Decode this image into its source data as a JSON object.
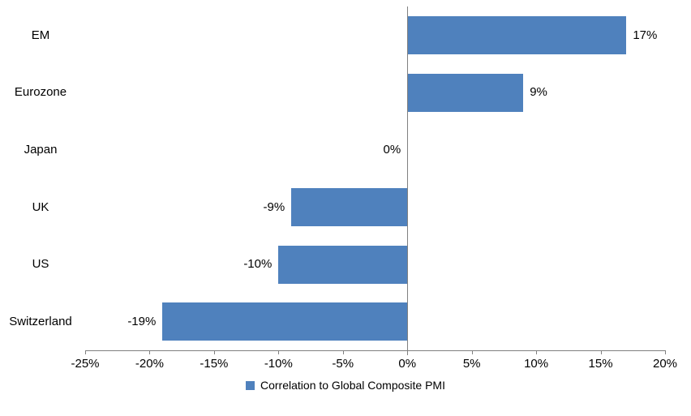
{
  "chart_data": {
    "type": "bar",
    "orientation": "horizontal",
    "categories": [
      "EM",
      "Eurozone",
      "Japan",
      "UK",
      "US",
      "Switzerland"
    ],
    "values": [
      17,
      9,
      0,
      -9,
      -10,
      -19
    ],
    "value_labels": [
      "17%",
      "9%",
      "0%",
      "-9%",
      "-10%",
      "-19%"
    ],
    "x_ticks": [
      -25,
      -20,
      -15,
      -10,
      -5,
      0,
      5,
      10,
      15,
      20
    ],
    "x_tick_labels": [
      "-25%",
      "-20%",
      "-15%",
      "-10%",
      "-5%",
      "0%",
      "5%",
      "10%",
      "15%",
      "20%"
    ],
    "xlim": [
      -25,
      20
    ],
    "legend": "Correlation to Global Composite PMI",
    "legend_position": "bottom-center",
    "grid": false,
    "bar_color": "#4F81BD",
    "axis_color": "#808080",
    "text_color": "#000000",
    "background_color": "#FFFFFF"
  }
}
